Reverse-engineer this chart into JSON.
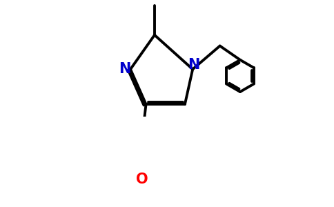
{
  "bg_color": "#ffffff",
  "bond_color": "#000000",
  "n_color": "#0000cc",
  "o_color": "#ff0000",
  "bond_width": 2.8,
  "figsize": [
    4.84,
    3.0
  ],
  "dpi": 100,
  "xlim": [
    0,
    9.68
  ],
  "ylim": [
    0,
    6.0
  ]
}
